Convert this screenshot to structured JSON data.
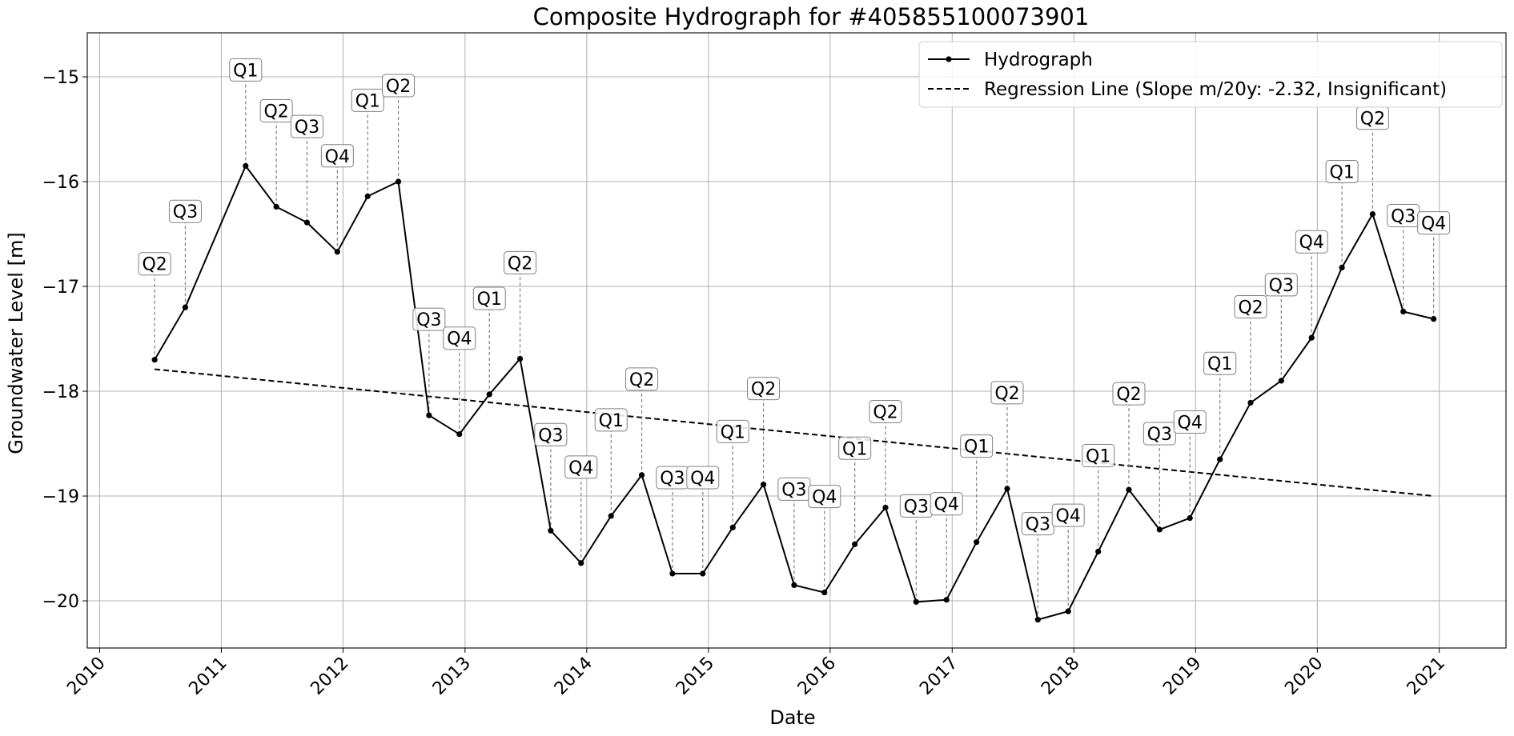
{
  "chart_data": {
    "type": "line",
    "title": "Composite Hydrograph for  #405855100073901",
    "xlabel": "Date",
    "ylabel": "Groundwater Level [m]",
    "xlim": [
      "2009-11-25",
      "2021-07-20"
    ],
    "ylim": [
      -20.45,
      -14.58
    ],
    "x_ticks": [
      "2010",
      "2011",
      "2012",
      "2013",
      "2014",
      "2015",
      "2016",
      "2017",
      "2018",
      "2019",
      "2020",
      "2021"
    ],
    "y_ticks": [
      -15,
      -16,
      -17,
      -18,
      -19,
      -20
    ],
    "y_tick_labels": [
      "−15",
      "−16",
      "−17",
      "−18",
      "−19",
      "−20"
    ],
    "grid": true,
    "legend_position": "top-right",
    "series": [
      {
        "name": "Hydrograph",
        "style": "solid-line-with-points",
        "color": "#000000",
        "points": [
          {
            "x": "2010-06-15",
            "y": -17.7,
            "label": "Q2"
          },
          {
            "x": "2010-09-15",
            "y": -17.2,
            "label": "Q3"
          },
          {
            "x": "2011-03-15",
            "y": -15.85,
            "label": "Q1"
          },
          {
            "x": "2011-06-15",
            "y": -16.24,
            "label": "Q2"
          },
          {
            "x": "2011-09-15",
            "y": -16.39,
            "label": "Q3"
          },
          {
            "x": "2011-12-15",
            "y": -16.67,
            "label": "Q4"
          },
          {
            "x": "2012-03-15",
            "y": -16.14,
            "label": "Q1"
          },
          {
            "x": "2012-06-15",
            "y": -16.0,
            "label": "Q2"
          },
          {
            "x": "2012-09-15",
            "y": -18.23,
            "label": "Q3"
          },
          {
            "x": "2012-12-15",
            "y": -18.41,
            "label": "Q4"
          },
          {
            "x": "2013-03-15",
            "y": -18.03,
            "label": "Q1"
          },
          {
            "x": "2013-06-15",
            "y": -17.69,
            "label": "Q2"
          },
          {
            "x": "2013-09-15",
            "y": -19.33,
            "label": "Q3"
          },
          {
            "x": "2013-12-15",
            "y": -19.64,
            "label": "Q4"
          },
          {
            "x": "2014-03-15",
            "y": -19.19,
            "label": "Q1"
          },
          {
            "x": "2014-06-15",
            "y": -18.8,
            "label": "Q2"
          },
          {
            "x": "2014-09-15",
            "y": -19.74,
            "label": "Q3"
          },
          {
            "x": "2014-12-15",
            "y": -19.74,
            "label": "Q4"
          },
          {
            "x": "2015-03-15",
            "y": -19.3,
            "label": "Q1"
          },
          {
            "x": "2015-06-15",
            "y": -18.89,
            "label": "Q2"
          },
          {
            "x": "2015-09-15",
            "y": -19.85,
            "label": "Q3"
          },
          {
            "x": "2015-12-15",
            "y": -19.92,
            "label": "Q4"
          },
          {
            "x": "2016-03-15",
            "y": -19.46,
            "label": "Q1"
          },
          {
            "x": "2016-06-15",
            "y": -19.11,
            "label": "Q2"
          },
          {
            "x": "2016-09-15",
            "y": -20.01,
            "label": "Q3"
          },
          {
            "x": "2016-12-15",
            "y": -19.99,
            "label": "Q4"
          },
          {
            "x": "2017-03-15",
            "y": -19.44,
            "label": "Q1"
          },
          {
            "x": "2017-06-15",
            "y": -18.93,
            "label": "Q2"
          },
          {
            "x": "2017-09-15",
            "y": -20.18,
            "label": "Q3"
          },
          {
            "x": "2017-12-15",
            "y": -20.1,
            "label": "Q4"
          },
          {
            "x": "2018-03-15",
            "y": -19.53,
            "label": "Q1"
          },
          {
            "x": "2018-06-15",
            "y": -18.94,
            "label": "Q2"
          },
          {
            "x": "2018-09-15",
            "y": -19.32,
            "label": "Q3"
          },
          {
            "x": "2018-12-15",
            "y": -19.21,
            "label": "Q4"
          },
          {
            "x": "2019-03-15",
            "y": -18.65,
            "label": "Q1"
          },
          {
            "x": "2019-06-15",
            "y": -18.11,
            "label": "Q2"
          },
          {
            "x": "2019-09-15",
            "y": -17.9,
            "label": "Q3"
          },
          {
            "x": "2019-12-15",
            "y": -17.49,
            "label": "Q4"
          },
          {
            "x": "2020-03-15",
            "y": -16.82,
            "label": "Q1"
          },
          {
            "x": "2020-06-15",
            "y": -16.31,
            "label": "Q2"
          },
          {
            "x": "2020-09-15",
            "y": -17.24,
            "label": "Q3"
          },
          {
            "x": "2020-12-15",
            "y": -17.31,
            "label": "Q4"
          }
        ]
      },
      {
        "name": "Regression Line (Slope m/20y: -2.32, Insignificant)",
        "style": "dashed-line",
        "color": "#000000",
        "points": [
          {
            "x": "2010-06-15",
            "y": -17.79
          },
          {
            "x": "2020-12-15",
            "y": -19.0
          }
        ]
      }
    ]
  }
}
